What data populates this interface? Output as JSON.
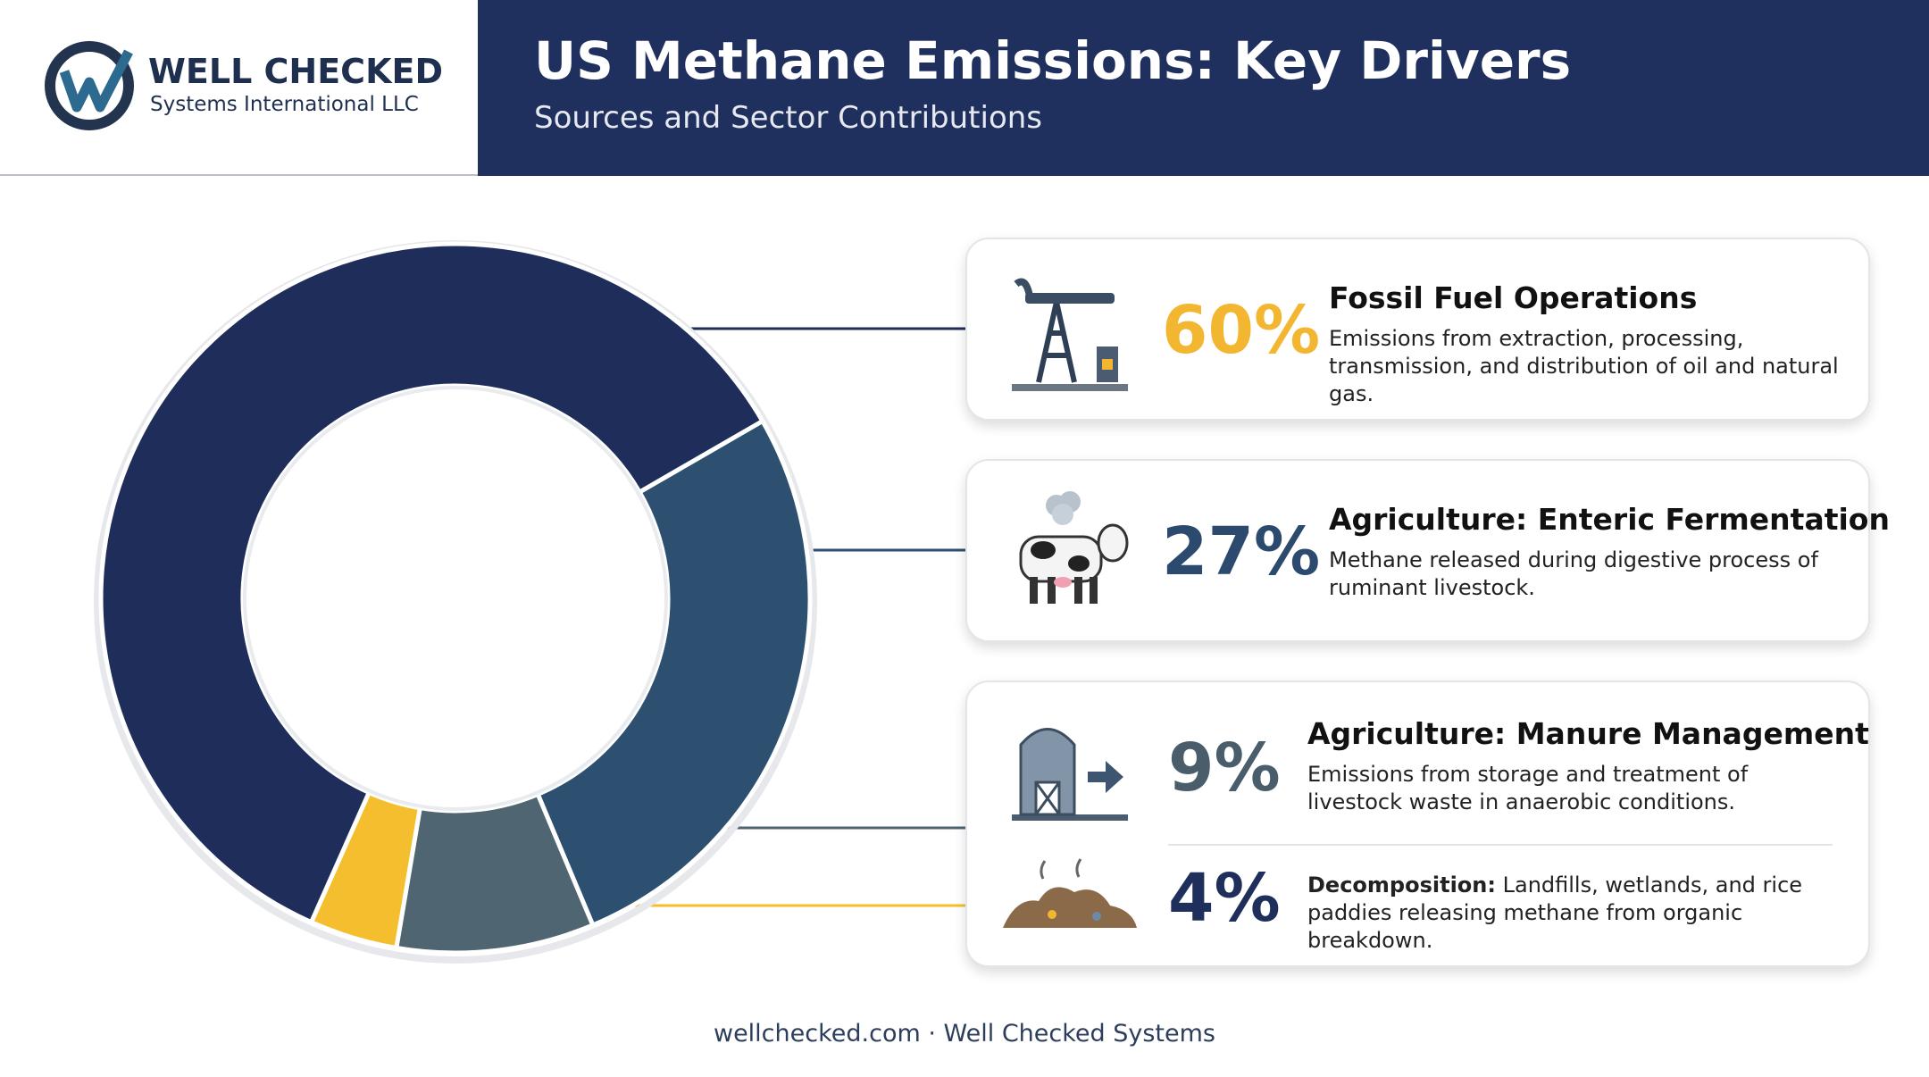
{
  "header": {
    "logo_name": "WELL CHECKED",
    "logo_sub": "Systems International LLC",
    "title": "US Methane Emissions: Key Drivers",
    "subtitle": "Sources and Sector Contributions"
  },
  "chart_data": {
    "type": "donut",
    "categories": [
      "Fossil Fuel Operations",
      "Agriculture: Enteric Fermentation",
      "Agriculture: Manure Management",
      "Decomposition:"
    ],
    "values": [
      60,
      27,
      9,
      4
    ],
    "value_labels": [
      "60%",
      "27%",
      "9%",
      "4%"
    ],
    "colors": [
      "#1f2d5b",
      "#2d5071",
      "#4f6572",
      "#f5be2e"
    ],
    "descriptions": [
      "Emissions from extraction, processing, transmission, and distribution of oil and natural gas.",
      "Methane released during digestive process of ruminant livestock.",
      "Emissions from storage and treatment of livestock waste in anaerobic conditions.",
      "Landfills, wetlands, and rice paddies releasing methane from organic breakdown."
    ]
  },
  "footer": "wellchecked.com · Well Checked Systems"
}
